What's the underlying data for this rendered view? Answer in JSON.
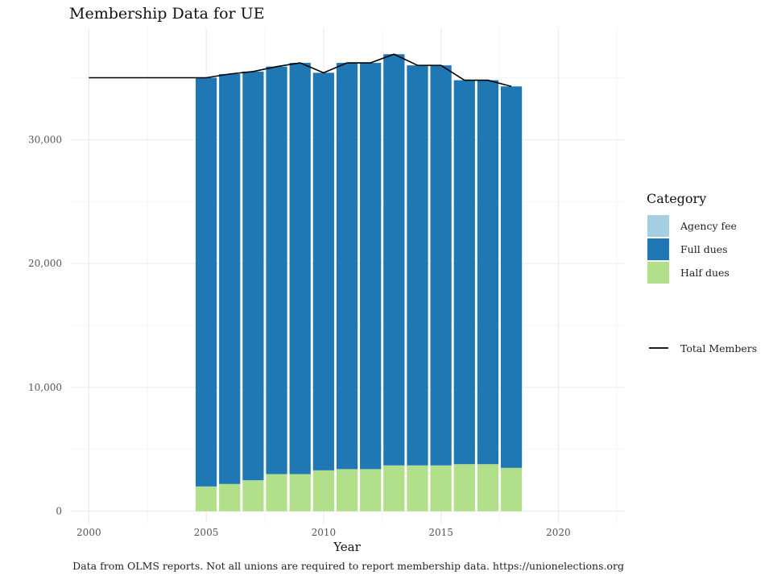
{
  "chart_data": {
    "type": "bar",
    "title": "Membership Data for UE",
    "xlabel": "Year",
    "ylabel": "",
    "caption": "Data from OLMS reports. Not all unions are required to report membership data. https://unionelections.org",
    "xlim": [
      1999.2,
      2022.8
    ],
    "ylim": [
      -1000,
      39000
    ],
    "x_ticks": [
      2000,
      2005,
      2010,
      2015,
      2020
    ],
    "x_tick_labels": [
      "2000",
      "2005",
      "2010",
      "2015",
      "2020"
    ],
    "y_ticks": [
      0,
      10000,
      20000,
      30000
    ],
    "y_tick_labels": [
      "0",
      "10,000",
      "20,000",
      "30,000"
    ],
    "grid": true,
    "stacked": true,
    "legend_position": "right",
    "legend_title": "Category",
    "years": [
      2005,
      2006,
      2007,
      2008,
      2009,
      2010,
      2011,
      2012,
      2013,
      2014,
      2015,
      2016,
      2017,
      2018
    ],
    "series": [
      {
        "name": "Agency fee",
        "color": "#a6cee3",
        "values": [
          0,
          0,
          0,
          0,
          0,
          0,
          0,
          0,
          0,
          0,
          0,
          0,
          0,
          0
        ]
      },
      {
        "name": "Full dues",
        "color": "#1f78b4",
        "values": [
          33000,
          33100,
          33000,
          32900,
          33200,
          32100,
          32800,
          32800,
          33200,
          32300,
          32300,
          31000,
          31000,
          30800
        ]
      },
      {
        "name": "Half dues",
        "color": "#b2df8a",
        "values": [
          2000,
          2200,
          2500,
          3000,
          3000,
          3300,
          3400,
          3400,
          3700,
          3700,
          3700,
          3800,
          3800,
          3500
        ]
      }
    ],
    "line_series": {
      "name": "Total Members",
      "color": "#000000",
      "x": [
        2000,
        2005,
        2006,
        2007,
        2008,
        2009,
        2010,
        2011,
        2012,
        2013,
        2014,
        2015,
        2016,
        2017,
        2018
      ],
      "y": [
        35000,
        35000,
        35300,
        35500,
        35900,
        36200,
        35400,
        36200,
        36200,
        36900,
        36000,
        36000,
        34800,
        34800,
        34300
      ]
    }
  }
}
